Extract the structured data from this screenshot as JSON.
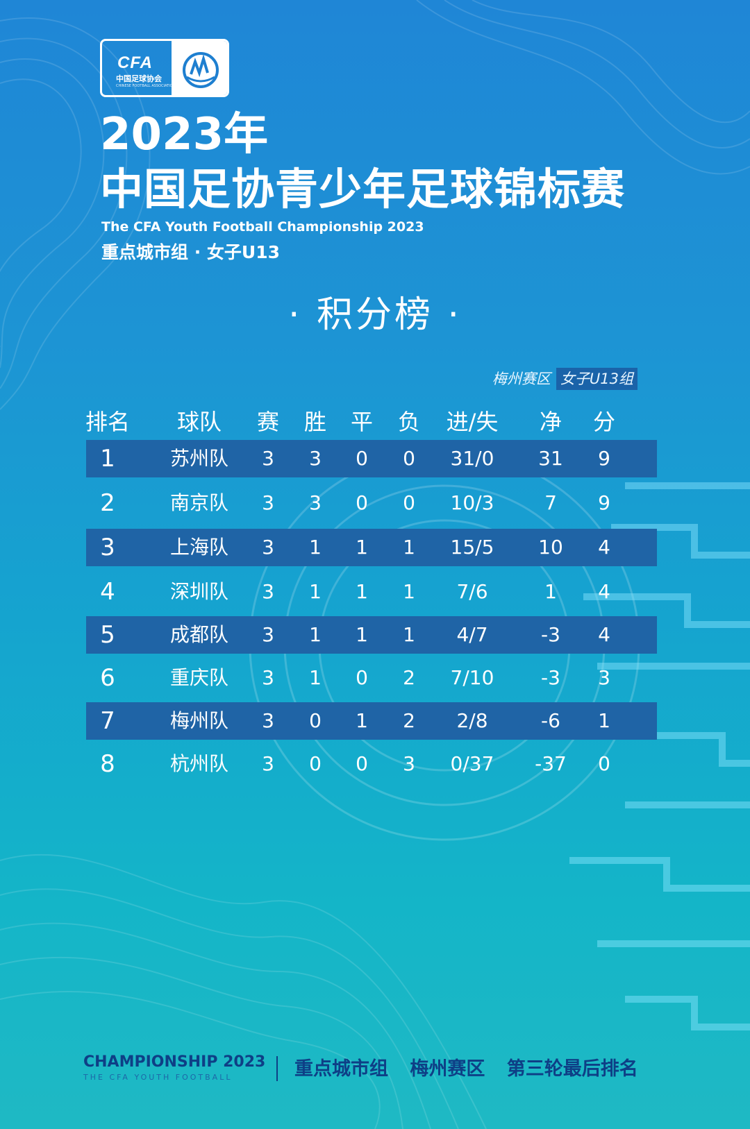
{
  "logo": {
    "cfa": "CFA",
    "cfa_sub": "中国足球协会",
    "cfa_en": "CHINESE FOOTBALL ASSOCIATION",
    "badge_icon": "football-badge-icon"
  },
  "header": {
    "year": "2023年",
    "title": "中国足协青少年足球锦标赛",
    "subtitle_en": "The CFA Youth Football Championship 2023",
    "group": "重点城市组 · 女子U13"
  },
  "board_title": "· 积分榜 ·",
  "zone": {
    "label": "梅州赛区",
    "highlight": "女子U13组"
  },
  "columns": [
    "排名",
    "球队",
    "赛",
    "胜",
    "平",
    "负",
    "进/失",
    "净",
    "分"
  ],
  "rows": [
    {
      "rank": "1",
      "team": "苏州队",
      "played": "3",
      "won": "3",
      "drawn": "0",
      "lost": "0",
      "gf_ga": "31/0",
      "gd": "31",
      "pts": "9"
    },
    {
      "rank": "2",
      "team": "南京队",
      "played": "3",
      "won": "3",
      "drawn": "0",
      "lost": "0",
      "gf_ga": "10/3",
      "gd": "7",
      "pts": "9"
    },
    {
      "rank": "3",
      "team": "上海队",
      "played": "3",
      "won": "1",
      "drawn": "1",
      "lost": "1",
      "gf_ga": "15/5",
      "gd": "10",
      "pts": "4"
    },
    {
      "rank": "4",
      "team": "深圳队",
      "played": "3",
      "won": "1",
      "drawn": "1",
      "lost": "1",
      "gf_ga": "7/6",
      "gd": "1",
      "pts": "4"
    },
    {
      "rank": "5",
      "team": "成都队",
      "played": "3",
      "won": "1",
      "drawn": "1",
      "lost": "1",
      "gf_ga": "4/7",
      "gd": "-3",
      "pts": "4"
    },
    {
      "rank": "6",
      "team": "重庆队",
      "played": "3",
      "won": "1",
      "drawn": "0",
      "lost": "2",
      "gf_ga": "7/10",
      "gd": "-3",
      "pts": "3"
    },
    {
      "rank": "7",
      "team": "梅州队",
      "played": "3",
      "won": "0",
      "drawn": "1",
      "lost": "2",
      "gf_ga": "2/8",
      "gd": "-6",
      "pts": "1"
    },
    {
      "rank": "8",
      "team": "杭州队",
      "played": "3",
      "won": "0",
      "drawn": "0",
      "lost": "3",
      "gf_ga": "0/37",
      "gd": "-37",
      "pts": "0"
    }
  ],
  "footer": {
    "en": "CHAMPIONSHIP 2023",
    "en_sub": "THE CFA YOUTH FOOTBALL",
    "text": "重点城市组 梅州赛区 第三轮最后排名"
  },
  "colors": {
    "row_shade": "#1f64a6",
    "footer_text": "#0e3f86"
  }
}
